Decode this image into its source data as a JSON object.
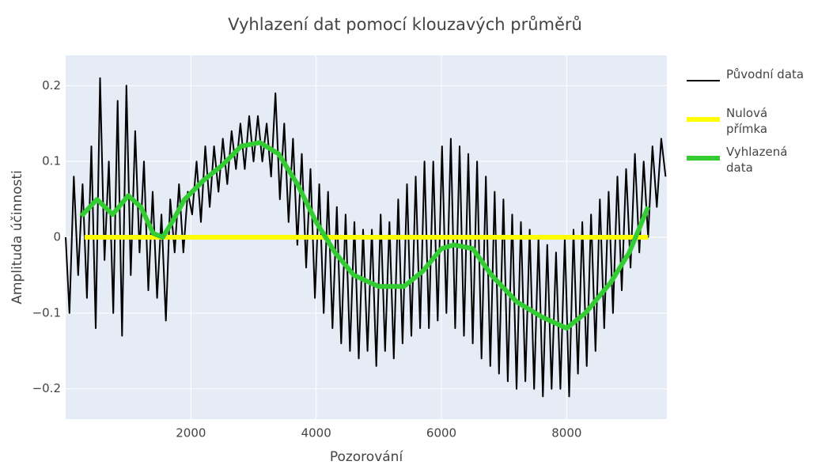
{
  "chart_data": {
    "type": "line",
    "title": "Vyhlazení dat pomocí klouzavých průměrů",
    "x_label": "Pozorování",
    "y_label": "Amplituda účinnosti",
    "xlim": [
      0,
      9600
    ],
    "xticks": [
      2000,
      4000,
      6000,
      8000
    ],
    "ylim": [
      -0.24,
      0.24
    ],
    "yticks": [
      {
        "value": -0.2,
        "label": "−0.2"
      },
      {
        "value": -0.1,
        "label": "−0.1"
      },
      0,
      0.1,
      0.2
    ],
    "grid": true,
    "legend": "right",
    "series": [
      {
        "name": "Původní data",
        "color": "#000000",
        "x": [
          0,
          60,
          130,
          200,
          270,
          340,
          410,
          480,
          550,
          620,
          690,
          760,
          830,
          900,
          970,
          1040,
          1110,
          1180,
          1250,
          1320,
          1390,
          1460,
          1530,
          1600,
          1670,
          1740,
          1810,
          1880,
          1950,
          2020,
          2090,
          2160,
          2230,
          2300,
          2370,
          2440,
          2510,
          2580,
          2650,
          2720,
          2790,
          2860,
          2930,
          3000,
          3070,
          3140,
          3210,
          3280,
          3350,
          3420,
          3490,
          3560,
          3630,
          3700,
          3770,
          3840,
          3910,
          3980,
          4050,
          4120,
          4190,
          4260,
          4330,
          4400,
          4470,
          4540,
          4610,
          4680,
          4750,
          4820,
          4890,
          4960,
          5030,
          5100,
          5170,
          5240,
          5310,
          5380,
          5450,
          5520,
          5590,
          5660,
          5730,
          5800,
          5870,
          5940,
          6010,
          6080,
          6150,
          6220,
          6290,
          6360,
          6430,
          6500,
          6570,
          6640,
          6710,
          6780,
          6850,
          6920,
          6990,
          7060,
          7130,
          7200,
          7270,
          7340,
          7410,
          7480,
          7550,
          7620,
          7690,
          7760,
          7830,
          7900,
          7970,
          8040,
          8110,
          8180,
          8250,
          8320,
          8390,
          8460,
          8530,
          8600,
          8670,
          8740,
          8810,
          8880,
          8950,
          9020,
          9090,
          9160,
          9230,
          9300,
          9370,
          9440,
          9510,
          9580
        ],
        "values": [
          0.0,
          -0.1,
          0.08,
          -0.05,
          0.07,
          -0.08,
          0.12,
          -0.12,
          0.21,
          -0.03,
          0.1,
          -0.1,
          0.18,
          -0.13,
          0.2,
          -0.05,
          0.14,
          -0.02,
          0.1,
          -0.07,
          0.06,
          -0.08,
          0.03,
          -0.11,
          0.05,
          -0.02,
          0.07,
          -0.02,
          0.06,
          0.03,
          0.1,
          0.02,
          0.12,
          0.04,
          0.12,
          0.06,
          0.13,
          0.07,
          0.14,
          0.09,
          0.15,
          0.09,
          0.16,
          0.1,
          0.16,
          0.1,
          0.15,
          0.08,
          0.19,
          0.05,
          0.15,
          0.02,
          0.13,
          -0.01,
          0.11,
          -0.04,
          0.09,
          -0.08,
          0.07,
          -0.1,
          0.06,
          -0.12,
          0.04,
          -0.14,
          0.03,
          -0.15,
          0.02,
          -0.16,
          0.01,
          -0.15,
          0.01,
          -0.17,
          0.03,
          -0.15,
          0.02,
          -0.16,
          0.05,
          -0.14,
          0.07,
          -0.13,
          0.08,
          -0.12,
          0.1,
          -0.12,
          0.1,
          -0.11,
          0.12,
          -0.1,
          0.13,
          -0.12,
          0.12,
          -0.13,
          0.11,
          -0.14,
          0.1,
          -0.16,
          0.08,
          -0.17,
          0.06,
          -0.18,
          0.05,
          -0.19,
          0.03,
          -0.2,
          0.02,
          -0.19,
          0.01,
          -0.2,
          0.0,
          -0.21,
          -0.01,
          -0.2,
          -0.02,
          -0.2,
          0.0,
          -0.21,
          0.01,
          -0.18,
          0.02,
          -0.17,
          0.03,
          -0.15,
          0.05,
          -0.12,
          0.06,
          -0.1,
          0.08,
          -0.07,
          0.09,
          -0.04,
          0.11,
          -0.02,
          0.1,
          0.0,
          0.12,
          0.04,
          0.13,
          0.08
        ]
      },
      {
        "name": "Nulová přímka",
        "color": "#ffff00",
        "x": [
          300,
          9300
        ],
        "values": [
          0,
          0
        ]
      },
      {
        "name": "Vyhlazená data",
        "color": "#33cc33",
        "x": [
          250,
          500,
          750,
          1000,
          1200,
          1400,
          1550,
          1700,
          1900,
          2200,
          2500,
          2800,
          3100,
          3400,
          3700,
          4000,
          4300,
          4600,
          5000,
          5400,
          5700,
          6000,
          6200,
          6500,
          6800,
          7200,
          7600,
          8000,
          8300,
          8700,
          9000,
          9300
        ],
        "values": [
          0.028,
          0.05,
          0.03,
          0.055,
          0.04,
          0.005,
          0,
          0.02,
          0.05,
          0.075,
          0.095,
          0.12,
          0.125,
          0.11,
          0.07,
          0.02,
          -0.02,
          -0.05,
          -0.065,
          -0.065,
          -0.045,
          -0.015,
          -0.01,
          -0.015,
          -0.05,
          -0.085,
          -0.105,
          -0.12,
          -0.1,
          -0.06,
          -0.02,
          0.04
        ]
      }
    ]
  }
}
